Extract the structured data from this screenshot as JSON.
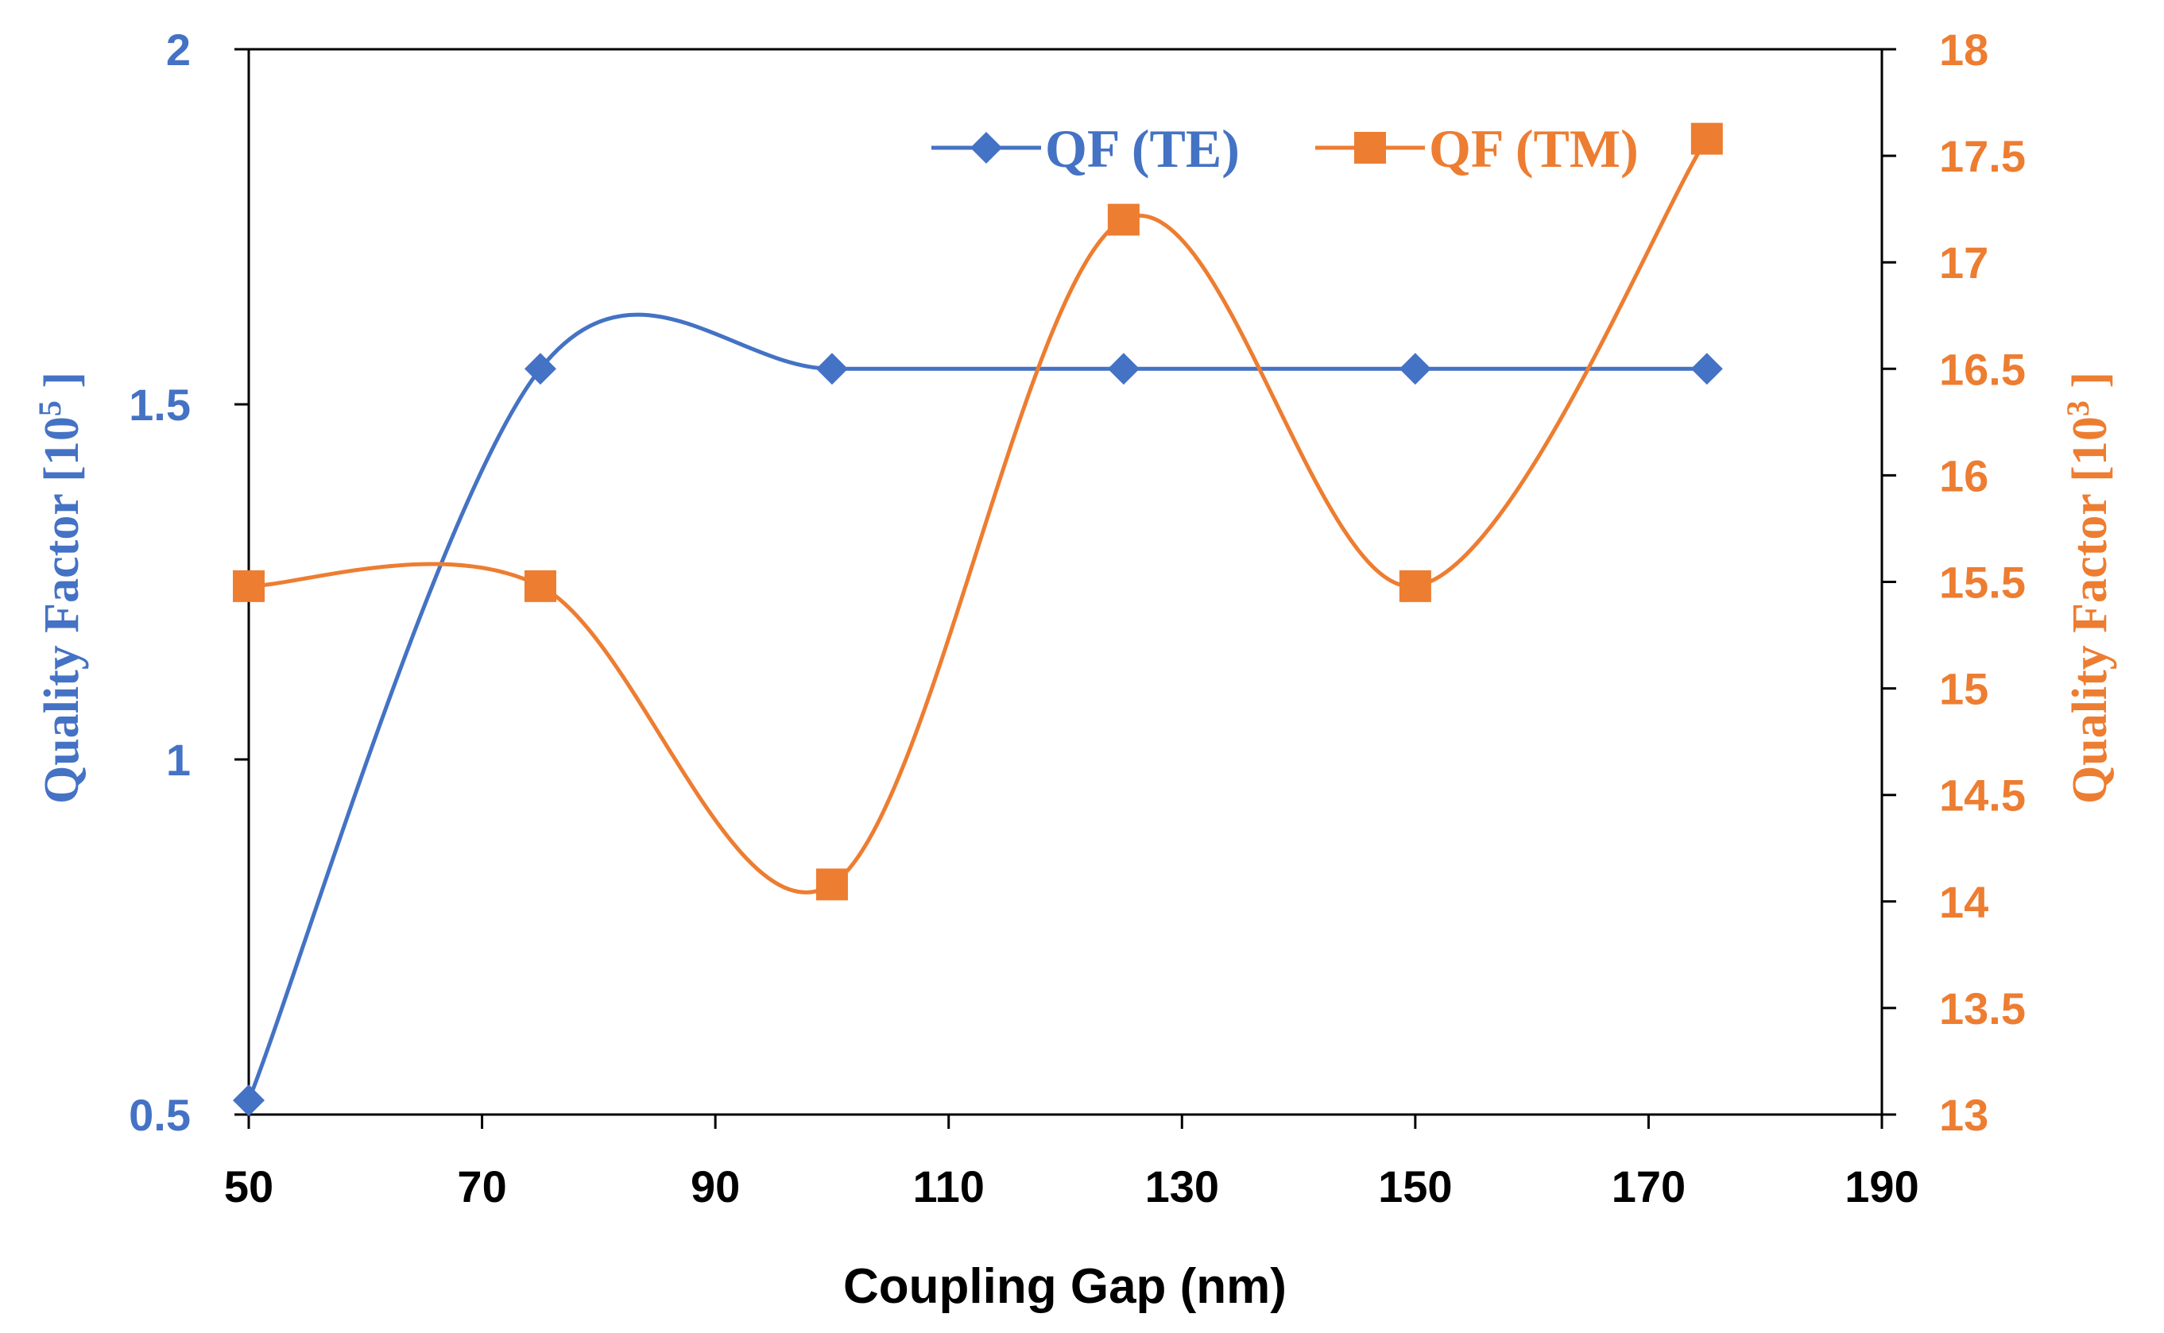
{
  "colors": {
    "te": "#4472C4",
    "tm": "#ED7D31",
    "axis": "#000000",
    "background": "#FFFFFF"
  },
  "chart_data": {
    "type": "line",
    "title": "",
    "xlabel": "Coupling Gap (nm)",
    "ylabel_left": {
      "main": "Quality Factor  [10",
      "sup": "5",
      "end": " ]"
    },
    "ylabel_right": {
      "main": "Quality Factor [10",
      "sup": "3",
      "end": " ]"
    },
    "xlim": [
      50,
      190
    ],
    "x_ticks": [
      50,
      70,
      90,
      110,
      130,
      150,
      170,
      190
    ],
    "x_tick_labels": [
      "50",
      "70",
      "90",
      "110",
      "130",
      "150",
      "170",
      "190"
    ],
    "ylim_left": [
      0.5,
      2
    ],
    "y_ticks_left": [
      0.5,
      1,
      1.5,
      2
    ],
    "y_tick_labels_left": [
      "0.5",
      "1",
      "1.5",
      "2"
    ],
    "ylim_right": [
      13,
      18
    ],
    "y_ticks_right": [
      13,
      13.5,
      14,
      14.5,
      15,
      15.5,
      16,
      16.5,
      17,
      17.5,
      18
    ],
    "y_tick_labels_right": [
      "13",
      "13.5",
      "14",
      "14.5",
      "15",
      "15.5",
      "16",
      "16.5",
      "17",
      "17.5",
      "18"
    ],
    "grid": false,
    "legend_position": "top-right",
    "series": [
      {
        "name": "QF (TE)",
        "axis": "left",
        "marker": "diamond",
        "smooth": true,
        "x": [
          50,
          75,
          100,
          125,
          150,
          175
        ],
        "y": [
          0.52,
          1.55,
          1.55,
          1.55,
          1.55,
          1.55
        ]
      },
      {
        "name": "QF (TM)",
        "axis": "right",
        "marker": "square",
        "smooth": true,
        "x": [
          50,
          75,
          100,
          125,
          150,
          175
        ],
        "y": [
          15.48,
          15.48,
          14.08,
          17.2,
          15.48,
          17.58
        ]
      }
    ]
  }
}
